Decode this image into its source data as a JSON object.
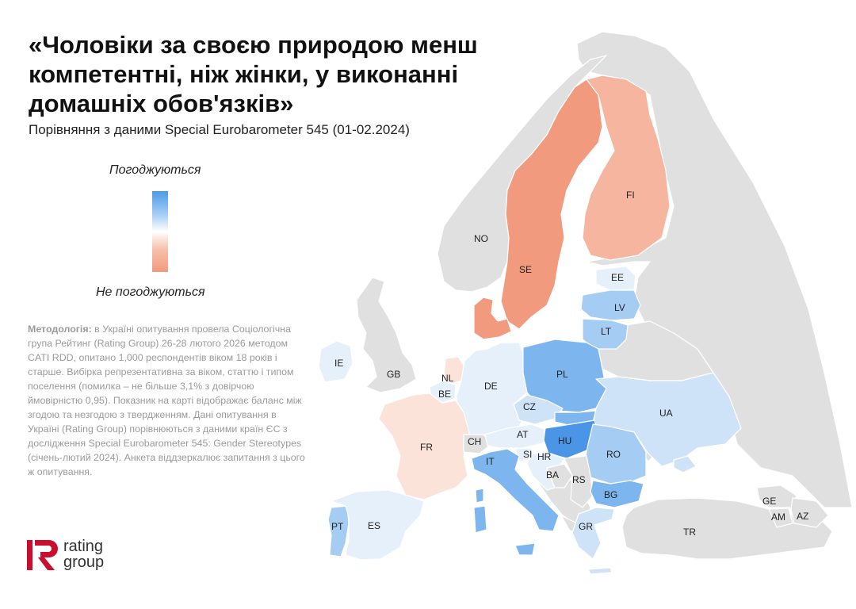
{
  "header": {
    "title_line1": "«Чоловіки за своєю природою менш",
    "title_line2": "компетентні, ніж жінки, у виконанні",
    "title_line3": "домашніх обов'язків»",
    "subtitle": "Порівняння з даними Special Eurobarometer 545 (01-02.2024)"
  },
  "legend": {
    "top_label": "Погоджуються",
    "bottom_label": "Не погоджуються"
  },
  "methodology": {
    "label": "Методологія:",
    "text": " в Україні опитування провела Соціологічна група Рейтинг (Rating Group) 26-28 лютого 2026 методом CATI RDD, опитано 1,000 респондентів віком 18 років і старше. Вибірка репрезентативна за віком, статтю і типом поселення (помилка – не більше 3,1% з довірчою ймовірністю 0,95). Показник на карті відображає баланс між згодою та незгодою з твердженням. Дані опитування в Україні (Rating Group) порівнюються з даними країн ЄС з дослідження Special Eurobarometer 545: Gender Stereotypes (січень-лютий 2024). Анкета віддзеркалює запитання з цього ж опитування."
  },
  "logo": {
    "line1": "rating",
    "line2": "group",
    "mark_color": "#c8102e"
  },
  "colors": {
    "no_data": "#e0e0e0",
    "disagree_strong": "#f29a7e",
    "disagree_mid": "#f6b59e",
    "disagree_light": "#fce3da",
    "neutral_light": "#e6f0fb",
    "agree_light": "#cfe3f8",
    "agree_mid": "#a5cdf3",
    "agree": "#7db6ee",
    "agree_strong": "#4a95e6"
  },
  "map": {
    "countries": [
      {
        "code": "NO",
        "name": "no-data"
      },
      {
        "code": "SE",
        "shade": "disagree_strong"
      },
      {
        "code": "FI",
        "shade": "disagree_mid"
      },
      {
        "code": "DK",
        "shade": "disagree_strong"
      },
      {
        "code": "EE",
        "shade": "neutral_light"
      },
      {
        "code": "LV",
        "shade": "agree_mid"
      },
      {
        "code": "LT",
        "shade": "agree_mid"
      },
      {
        "code": "IE",
        "shade": "neutral_light"
      },
      {
        "code": "GB",
        "shade": "no_data"
      },
      {
        "code": "NL",
        "shade": "disagree_light"
      },
      {
        "code": "BE",
        "shade": "neutral_light"
      },
      {
        "code": "DE",
        "shade": "neutral_light"
      },
      {
        "code": "PL",
        "shade": "agree"
      },
      {
        "code": "CZ",
        "shade": "agree_light"
      },
      {
        "code": "UA",
        "shade": "agree_light"
      },
      {
        "code": "FR",
        "shade": "disagree_light"
      },
      {
        "code": "CH",
        "shade": "no_data"
      },
      {
        "code": "AT",
        "shade": "neutral_light"
      },
      {
        "code": "HU",
        "shade": "agree_strong"
      },
      {
        "code": "RO",
        "shade": "agree_mid"
      },
      {
        "code": "IT",
        "shade": "agree"
      },
      {
        "code": "SI",
        "shade": "neutral_light"
      },
      {
        "code": "HR",
        "shade": "neutral_light"
      },
      {
        "code": "BA",
        "shade": "no_data"
      },
      {
        "code": "RS",
        "shade": "no_data"
      },
      {
        "code": "BG",
        "shade": "agree"
      },
      {
        "code": "GR",
        "shade": "agree_light"
      },
      {
        "code": "PT",
        "shade": "agree_mid"
      },
      {
        "code": "ES",
        "shade": "neutral_light"
      },
      {
        "code": "TR",
        "shade": "no_data"
      },
      {
        "code": "GE",
        "shade": "no_data"
      },
      {
        "code": "AM",
        "shade": "no_data"
      },
      {
        "code": "AZ",
        "shade": "no_data"
      }
    ]
  }
}
